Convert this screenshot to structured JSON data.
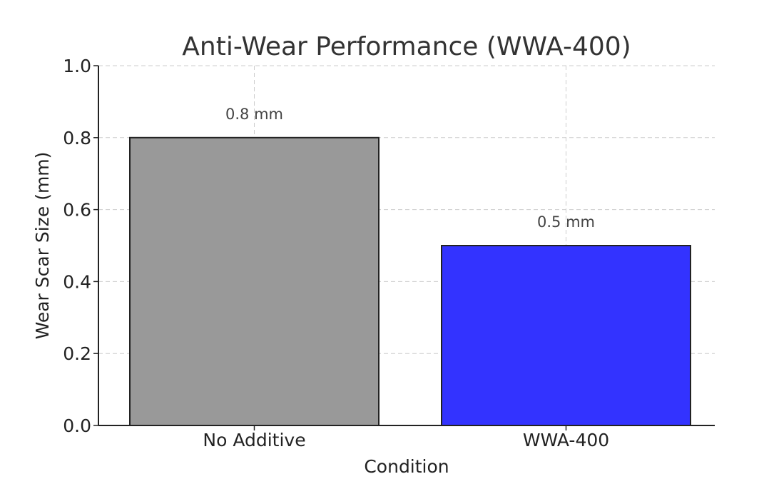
{
  "chart_data": {
    "type": "bar",
    "title": "Anti-Wear Performance (WWA-400)",
    "xlabel": "Condition",
    "ylabel": "Wear Scar Size (mm)",
    "categories": [
      "No Additive",
      "WWA-400"
    ],
    "values": [
      0.8,
      0.5
    ],
    "data_labels": [
      "0.8 mm",
      "0.5 mm"
    ],
    "colors": [
      "#999999",
      "#3333ff"
    ],
    "ylim": [
      0,
      1.0
    ],
    "yticks": [
      "0.0",
      "0.2",
      "0.4",
      "0.6",
      "0.8",
      "1.0"
    ],
    "grid": true,
    "legend": "none"
  }
}
